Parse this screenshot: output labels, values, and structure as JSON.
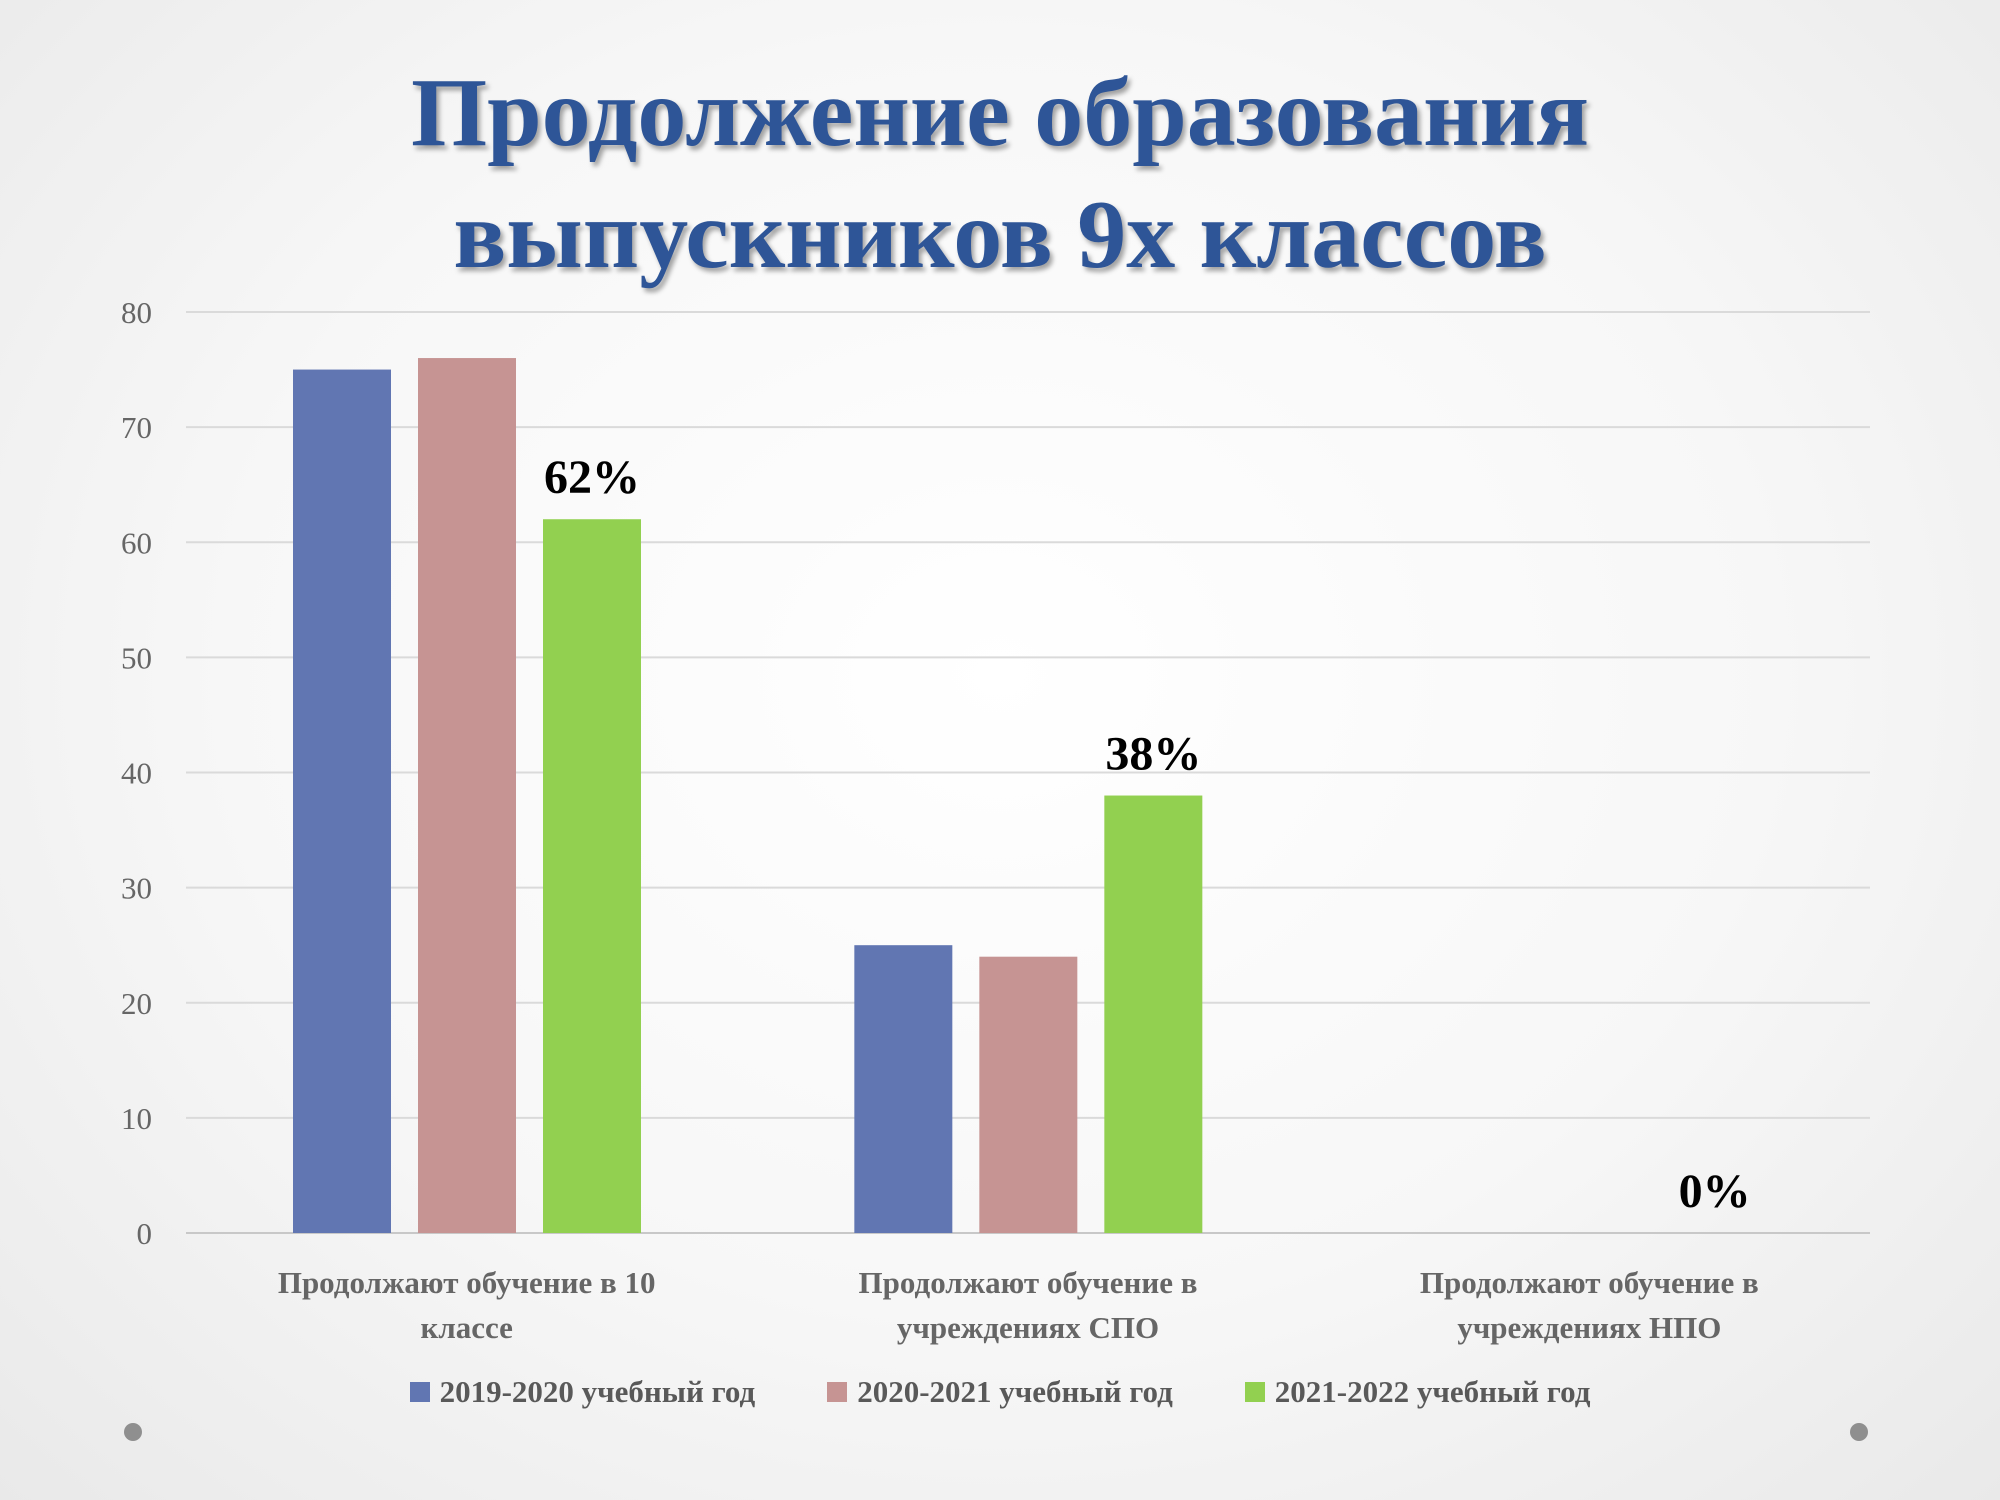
{
  "slide": {
    "title_line1": "Продолжение образования",
    "title_line2": "выпускников 9х классов"
  },
  "chart_data": {
    "type": "bar",
    "title": "Продолжение образования выпускников 9х классов",
    "categories": [
      [
        "Продолжают обучение в 10",
        "классе"
      ],
      [
        "Продолжают обучение в",
        "учреждениях СПО"
      ],
      [
        "Продолжают обучение в",
        "учреждениях НПО"
      ]
    ],
    "series": [
      {
        "name": "2019-2020 учебный год",
        "color": "#6176b2",
        "values": [
          75,
          25,
          0
        ]
      },
      {
        "name": "2020-2021 учебный год",
        "color": "#c69493",
        "values": [
          76,
          24,
          0
        ]
      },
      {
        "name": "2021-2022 учебный год",
        "color": "#92d050",
        "values": [
          62,
          38,
          0
        ],
        "data_labels": [
          "62%",
          "38%",
          "0%"
        ]
      }
    ],
    "ylim": [
      0,
      80
    ],
    "yticks": [
      0,
      10,
      20,
      30,
      40,
      50,
      60,
      70,
      80
    ],
    "grid": true,
    "legend_position": "bottom"
  }
}
